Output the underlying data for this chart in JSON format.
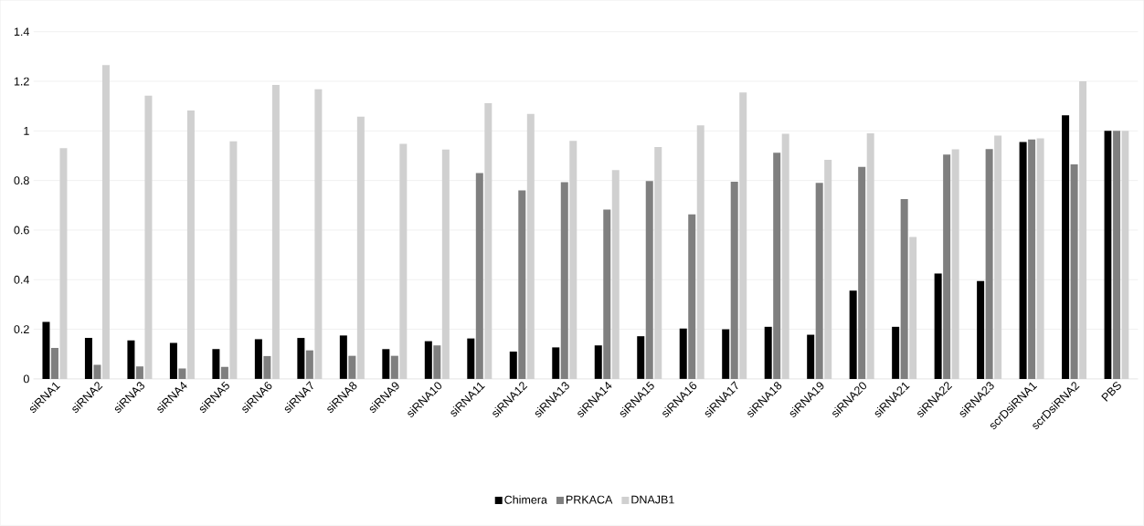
{
  "chart_data": {
    "type": "bar",
    "categories": [
      "siRNA1",
      "siRNA2",
      "siRNA3",
      "siRNA4",
      "siRNA5",
      "siRNA6",
      "siRNA7",
      "siRNA8",
      "siRNA9",
      "siRNA10",
      "siRNA11",
      "siRNA12",
      "siRNA13",
      "siRNA14",
      "siRNA15",
      "siRNA16",
      "siRNA17",
      "siRNA18",
      "siRNA19",
      "siRNA20",
      "siRNA21",
      "siRNA22",
      "siRNA23",
      "scrDsiRNA1",
      "scrDsiRNA2",
      "PBS"
    ],
    "series": [
      {
        "name": "Chimera",
        "color": "#000000",
        "values": [
          0.23,
          0.165,
          0.155,
          0.145,
          0.12,
          0.16,
          0.165,
          0.175,
          0.12,
          0.152,
          0.163,
          0.11,
          0.127,
          0.135,
          0.172,
          0.203,
          0.2,
          0.21,
          0.178,
          0.356,
          0.21,
          0.425,
          0.395,
          0.955,
          1.063,
          1.0
        ]
      },
      {
        "name": "PRKACA",
        "color": "#7f7f7f",
        "values": [
          0.125,
          0.057,
          0.05,
          0.042,
          0.048,
          0.092,
          0.115,
          0.093,
          0.093,
          0.135,
          0.83,
          0.76,
          0.793,
          0.683,
          0.798,
          0.663,
          0.795,
          0.912,
          0.79,
          0.855,
          0.725,
          0.905,
          0.927,
          0.965,
          0.865,
          1.0
        ]
      },
      {
        "name": "DNAJB1",
        "color": "#d0d0d0",
        "values": [
          0.93,
          1.265,
          1.142,
          1.082,
          0.958,
          1.185,
          1.168,
          1.057,
          0.948,
          0.925,
          1.112,
          1.068,
          0.96,
          0.842,
          0.935,
          1.022,
          1.155,
          0.988,
          0.883,
          0.99,
          0.572,
          0.926,
          0.981,
          0.97,
          1.2,
          1.0
        ]
      }
    ],
    "ylim": [
      0,
      1.4
    ],
    "yticks": [
      0,
      0.2,
      0.4,
      0.6,
      0.8,
      1,
      1.2,
      1.4
    ],
    "grid": "y",
    "legend": "bottom"
  }
}
